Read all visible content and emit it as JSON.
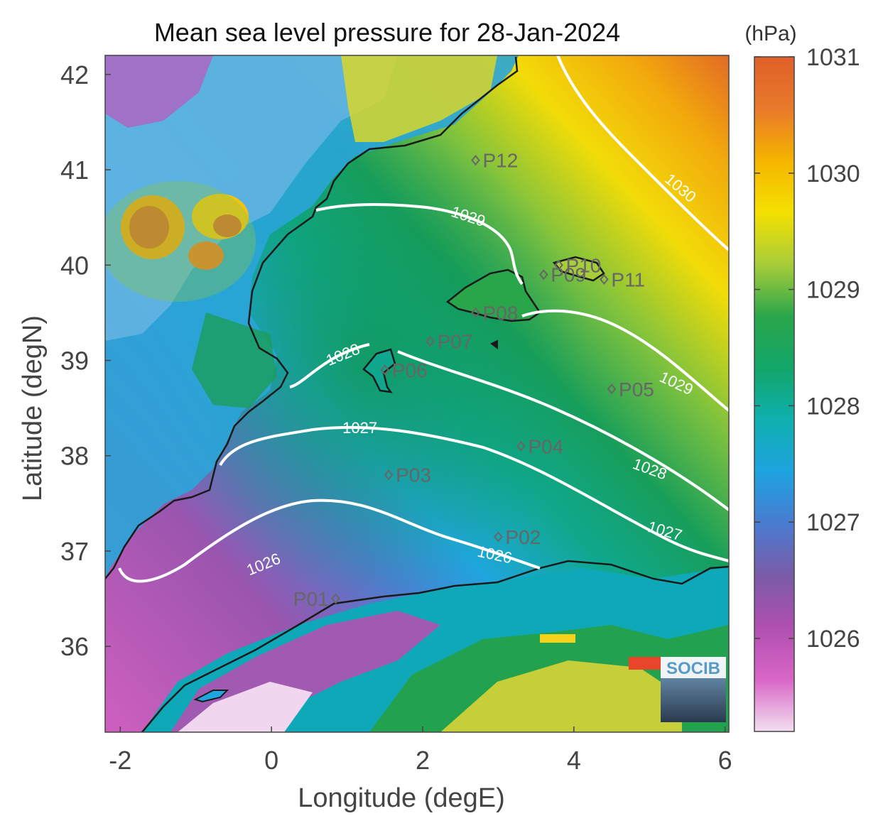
{
  "title": "Mean sea level pressure for 28-Jan-2024",
  "xlabel": "Longitude (degE)",
  "ylabel": "Latitude (degN)",
  "colorbar": {
    "unit": "(hPa)",
    "ticks": [
      "1031",
      "1030",
      "1029",
      "1028",
      "1027",
      "1026"
    ],
    "range": [
      1025.2,
      1031.0
    ],
    "colors": [
      "#f3dff0",
      "#d966c7",
      "#b04fb0",
      "#7a5ba8",
      "#4a7bd0",
      "#1ea3e0",
      "#0fb0b0",
      "#12a66a",
      "#2aa64a",
      "#a8cd3a",
      "#f4e000",
      "#f5b400",
      "#e8792a",
      "#e0602a"
    ]
  },
  "xticks": [
    "-2",
    "0",
    "2",
    "4",
    "6"
  ],
  "yticks": [
    "42",
    "41",
    "40",
    "39",
    "38",
    "37",
    "36"
  ],
  "logo": "SOCIB",
  "map_data": {
    "extent_lon": [
      -2.2,
      6.05
    ],
    "extent_lat": [
      35.1,
      42.2
    ],
    "points": [
      {
        "name": "P01",
        "lon": 0.85,
        "lat": 36.5
      },
      {
        "name": "P02",
        "lon": 3.0,
        "lat": 37.15
      },
      {
        "name": "P03",
        "lon": 1.55,
        "lat": 37.8
      },
      {
        "name": "P04",
        "lon": 3.3,
        "lat": 38.1
      },
      {
        "name": "P05",
        "lon": 4.5,
        "lat": 38.7
      },
      {
        "name": "P06",
        "lon": 1.5,
        "lat": 38.9
      },
      {
        "name": "P07",
        "lon": 2.1,
        "lat": 39.2
      },
      {
        "name": "P08",
        "lon": 2.7,
        "lat": 39.5
      },
      {
        "name": "P09",
        "lon": 3.6,
        "lat": 39.9
      },
      {
        "name": "P10",
        "lon": 3.8,
        "lat": 40.0
      },
      {
        "name": "P11",
        "lon": 4.4,
        "lat": 39.85
      },
      {
        "name": "P12",
        "lon": 2.7,
        "lat": 41.1
      }
    ],
    "contour_labels": [
      {
        "text": "1026",
        "lon": -0.1,
        "lat": 36.85,
        "angle": -22
      },
      {
        "text": "1026",
        "lon": 2.95,
        "lat": 36.95,
        "angle": 12
      },
      {
        "text": "1027",
        "lon": 1.17,
        "lat": 38.28,
        "angle": 0
      },
      {
        "text": "1027",
        "lon": 5.2,
        "lat": 37.2,
        "angle": 16
      },
      {
        "text": "1028",
        "lon": 0.95,
        "lat": 39.05,
        "angle": -22
      },
      {
        "text": "1028",
        "lon": 5.0,
        "lat": 37.85,
        "angle": 20
      },
      {
        "text": "1029",
        "lon": 2.6,
        "lat": 40.5,
        "angle": 18
      },
      {
        "text": "1029",
        "lon": 5.35,
        "lat": 38.75,
        "angle": 25
      },
      {
        "text": "1030",
        "lon": 5.4,
        "lat": 40.8,
        "angle": 40
      }
    ]
  }
}
